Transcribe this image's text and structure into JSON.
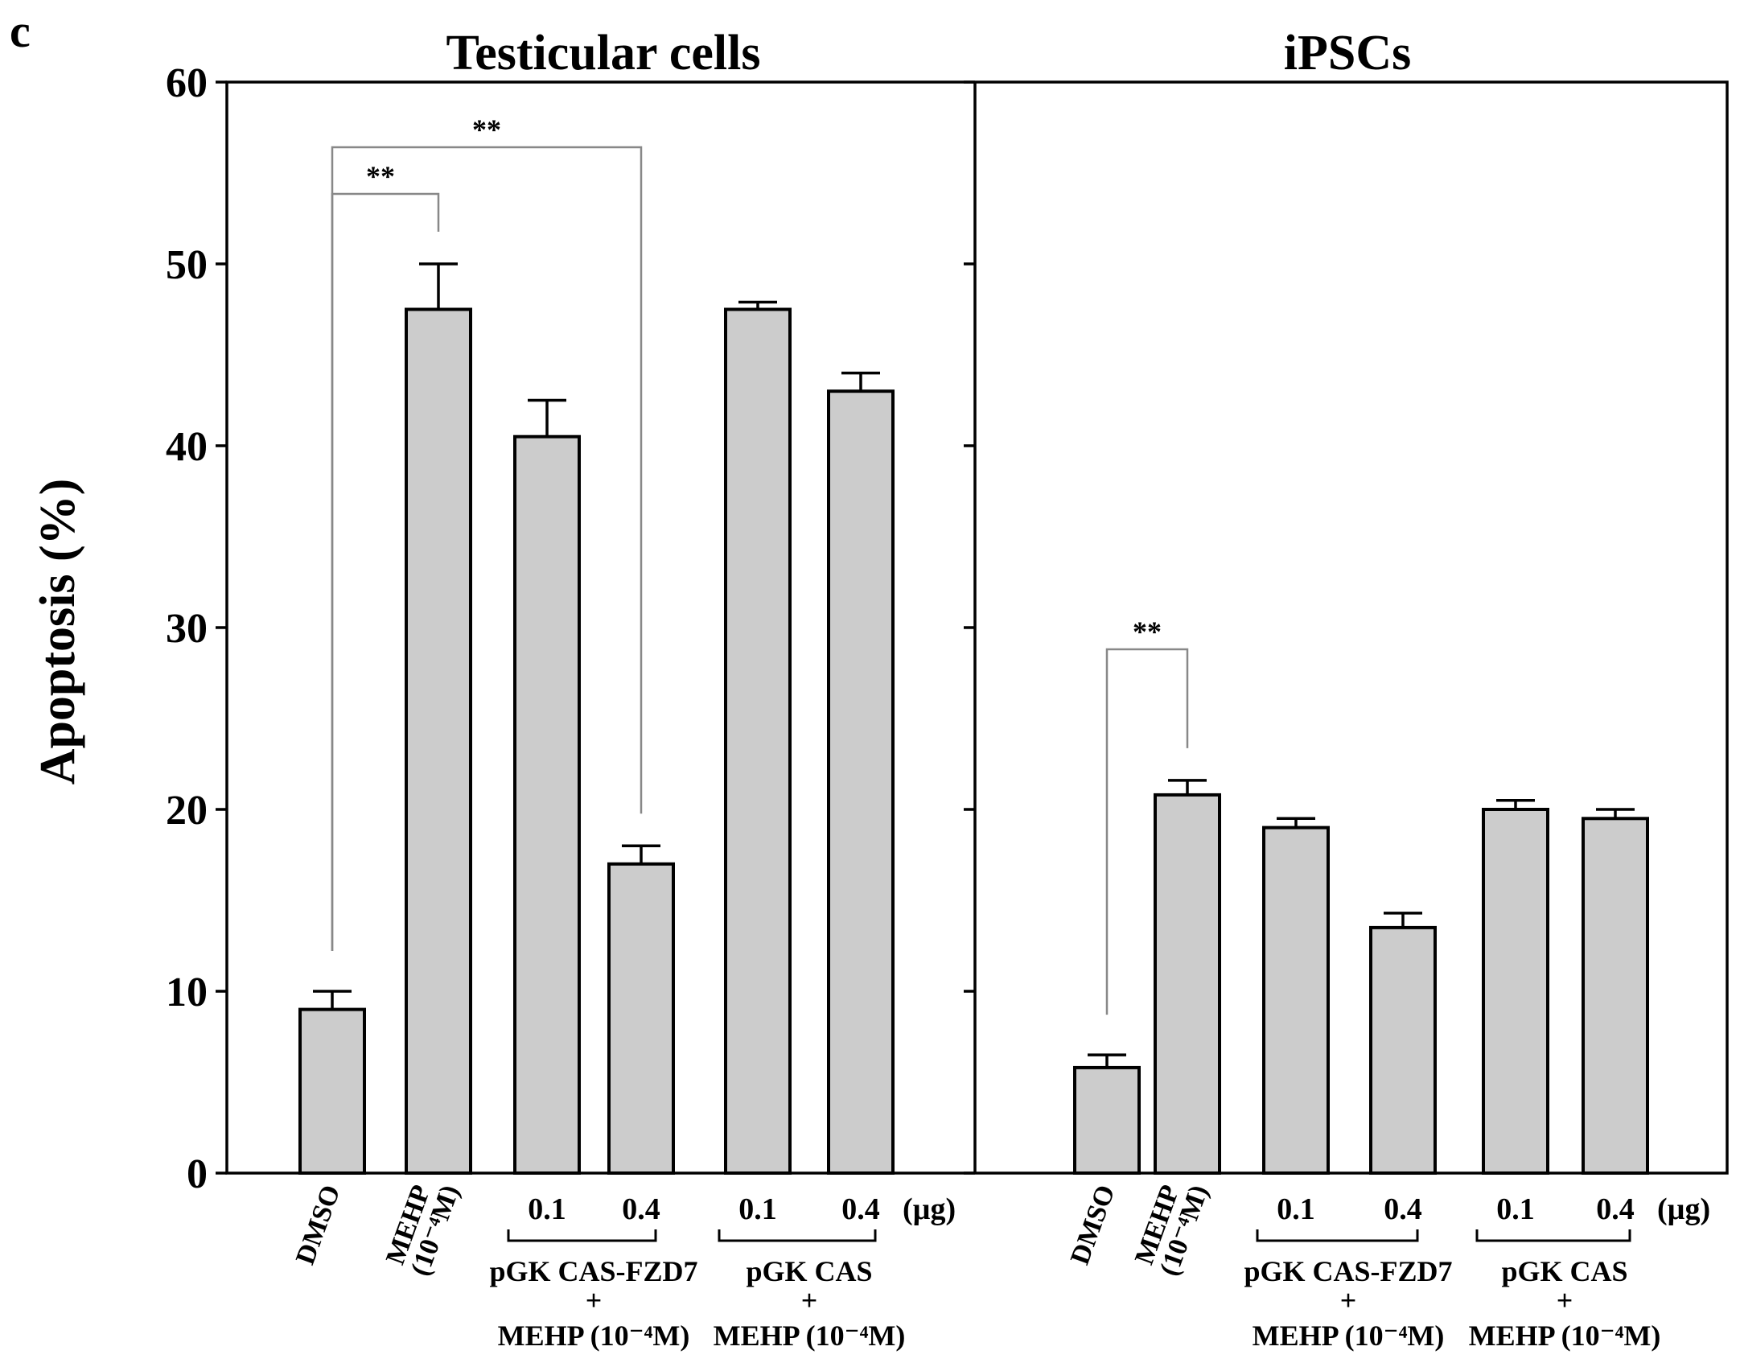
{
  "panel_letter": "c",
  "chart_data": {
    "type": "bar",
    "ylabel": "Apoptosis (%)",
    "ylim": [
      0,
      60
    ],
    "yticks": [
      0,
      10,
      20,
      30,
      40,
      50,
      60
    ],
    "unit_label": "(µg)",
    "group_labels": [
      {
        "line1": "pGK CAS-FZD7",
        "line2": "+",
        "line3": "MEHP (10⁻⁴M)"
      },
      {
        "line1": "pGK CAS",
        "line2": "+",
        "line3": "MEHP (10⁻⁴M)"
      }
    ],
    "panels": [
      {
        "title": "Testicular cells",
        "categories": [
          {
            "label": "DMSO",
            "rotated": true
          },
          {
            "label": "MEHP",
            "label2": "(10⁻⁴M)",
            "rotated": true
          },
          {
            "label": "0.1"
          },
          {
            "label": "0.4"
          },
          {
            "label": "0.1"
          },
          {
            "label": "0.4"
          }
        ],
        "values": [
          9,
          47.5,
          40.5,
          17,
          47.5,
          43
        ],
        "errors": [
          1,
          2.5,
          2,
          1,
          0.4,
          1
        ],
        "significance": [
          {
            "from": 0,
            "to": 1,
            "label": "**"
          },
          {
            "from": 0,
            "to": 3,
            "label": "**"
          }
        ]
      },
      {
        "title": "iPSCs",
        "categories": [
          {
            "label": "DMSO",
            "rotated": true
          },
          {
            "label": "MEHP",
            "label2": "(10⁻⁴M)",
            "rotated": true
          },
          {
            "label": "0.1"
          },
          {
            "label": "0.4"
          },
          {
            "label": "0.1"
          },
          {
            "label": "0.4"
          }
        ],
        "values": [
          5.8,
          20.8,
          19,
          13.5,
          20,
          19.5
        ],
        "errors": [
          0.7,
          0.8,
          0.5,
          0.8,
          0.5,
          0.5
        ],
        "significance": [
          {
            "from": 0,
            "to": 1,
            "label": "**"
          }
        ]
      }
    ]
  }
}
